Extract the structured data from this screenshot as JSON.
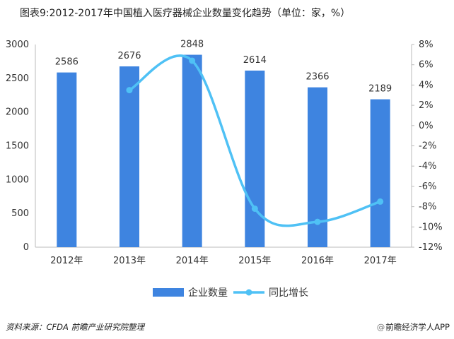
{
  "chart_data": {
    "type": "bar",
    "title": "图表9:2012-2017年中国植入医疗器械企业数量变化趋势（单位：家，%）",
    "categories": [
      "2012年",
      "2013年",
      "2014年",
      "2015年",
      "2016年",
      "2017年"
    ],
    "series": [
      {
        "name": "企业数量",
        "type": "bar",
        "axis": "left",
        "values": [
          2586,
          2676,
          2848,
          2614,
          2366,
          2189
        ]
      },
      {
        "name": "同比增长",
        "type": "line",
        "axis": "right",
        "values": [
          null,
          3.5,
          6.4,
          -8.2,
          -9.5,
          -7.5
        ]
      }
    ],
    "y_left": {
      "min": 0,
      "max": 3000,
      "ticks": [
        "0",
        "500",
        "1000",
        "1500",
        "2000",
        "2500",
        "3000"
      ]
    },
    "y_right": {
      "min": -12,
      "max": 8,
      "ticks": [
        "-12%",
        "-10%",
        "-8%",
        "-6%",
        "-4%",
        "-2%",
        "0%",
        "2%",
        "4%",
        "6%",
        "8%"
      ]
    },
    "data_labels": [
      "2586",
      "2676",
      "2848",
      "2614",
      "2366",
      "2189"
    ],
    "legend_position": "bottom",
    "grid": false,
    "colors": {
      "bar": "#3e84e0",
      "line": "#4fc1f5",
      "axis": "#bbbbbb"
    }
  },
  "footer": {
    "source": "资料来源：CFDA 前瞻产业研究院整理",
    "credit_lead": "@",
    "credit": "前瞻经济学人APP"
  }
}
